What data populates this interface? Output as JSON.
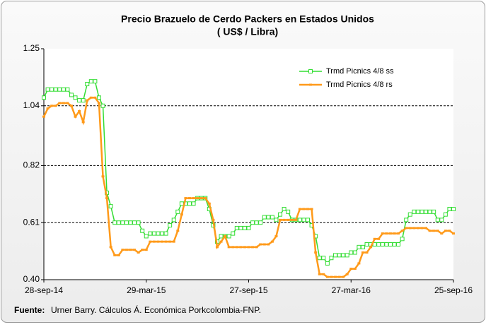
{
  "chart_data": {
    "type": "line",
    "title": "Precio Brazuelo de Cerdo Packers en Estados Unidos",
    "subtitle": "( US$ / Libra)",
    "source_label": "Fuente:",
    "source_text": "Urner Barry. Cálculos Á. Económica Porkcolombia-FNP.",
    "categories": [
      "28-sep-14",
      null,
      null,
      null,
      null,
      null,
      null,
      null,
      null,
      null,
      null,
      null,
      null,
      null,
      null,
      null,
      null,
      null,
      null,
      null,
      null,
      null,
      null,
      null,
      null,
      null,
      "29-mar-15",
      null,
      null,
      null,
      null,
      null,
      null,
      null,
      null,
      null,
      null,
      null,
      null,
      null,
      null,
      null,
      null,
      null,
      null,
      null,
      null,
      null,
      null,
      null,
      null,
      null,
      "27-sep-15",
      null,
      null,
      null,
      null,
      null,
      null,
      null,
      null,
      null,
      null,
      null,
      null,
      null,
      null,
      null,
      null,
      null,
      null,
      null,
      null,
      null,
      null,
      null,
      null,
      null,
      "27-mar-16",
      null,
      null,
      null,
      null,
      null,
      null,
      null,
      null,
      null,
      null,
      null,
      null,
      null,
      null,
      null,
      null,
      null,
      null,
      null,
      null,
      null,
      null,
      null,
      null,
      null,
      "25-sep-16"
    ],
    "series": [
      {
        "name": "Trmd Picnics 4/8 ss",
        "color": "#33dd33",
        "marker": "square",
        "values": [
          1.07,
          1.1,
          1.1,
          1.1,
          1.1,
          1.1,
          1.1,
          1.08,
          1.07,
          1.06,
          1.06,
          1.12,
          1.13,
          1.13,
          1.07,
          1.04,
          0.72,
          0.67,
          0.61,
          0.61,
          0.61,
          0.61,
          0.61,
          0.61,
          0.61,
          0.58,
          0.56,
          0.57,
          0.57,
          0.57,
          0.57,
          0.57,
          0.6,
          0.62,
          0.65,
          0.68,
          0.68,
          0.68,
          0.68,
          0.7,
          0.7,
          0.7,
          0.66,
          0.6,
          0.54,
          0.56,
          0.56,
          0.56,
          0.57,
          0.59,
          0.59,
          0.59,
          0.59,
          0.61,
          0.61,
          0.61,
          0.63,
          0.63,
          0.63,
          0.62,
          0.64,
          0.66,
          0.65,
          0.62,
          0.62,
          0.62,
          0.62,
          0.62,
          0.6,
          0.56,
          0.48,
          0.48,
          0.46,
          0.48,
          0.49,
          0.49,
          0.49,
          0.49,
          0.5,
          0.5,
          0.52,
          0.52,
          0.53,
          0.53,
          0.53,
          0.53,
          0.53,
          0.53,
          0.53,
          0.53,
          0.53,
          0.55,
          0.62,
          0.64,
          0.65,
          0.65,
          0.65,
          0.65,
          0.65,
          0.65,
          0.62,
          0.62,
          0.64,
          0.66,
          0.66
        ]
      },
      {
        "name": "Trmd Picnics 4/8 rs",
        "color": "#ff9a1a",
        "marker": "dash",
        "values": [
          1.0,
          1.03,
          1.04,
          1.04,
          1.05,
          1.05,
          1.05,
          1.04,
          1.0,
          1.02,
          0.98,
          1.06,
          1.07,
          1.07,
          1.05,
          0.78,
          0.7,
          0.52,
          0.49,
          0.49,
          0.51,
          0.51,
          0.51,
          0.51,
          0.5,
          0.51,
          0.51,
          0.54,
          0.54,
          0.54,
          0.54,
          0.54,
          0.54,
          0.54,
          0.58,
          0.64,
          0.7,
          0.7,
          0.7,
          0.7,
          0.7,
          0.7,
          0.68,
          0.62,
          0.52,
          0.54,
          0.56,
          0.52,
          0.52,
          0.52,
          0.52,
          0.52,
          0.52,
          0.52,
          0.52,
          0.53,
          0.53,
          0.53,
          0.54,
          0.56,
          0.62,
          0.62,
          0.62,
          0.62,
          0.62,
          0.66,
          0.66,
          0.66,
          0.66,
          0.5,
          0.42,
          0.42,
          0.41,
          0.41,
          0.41,
          0.41,
          0.41,
          0.42,
          0.44,
          0.44,
          0.46,
          0.5,
          0.5,
          0.52,
          0.55,
          0.55,
          0.57,
          0.57,
          0.57,
          0.57,
          0.57,
          0.58,
          0.59,
          0.59,
          0.59,
          0.59,
          0.59,
          0.59,
          0.58,
          0.58,
          0.58,
          0.57,
          0.58,
          0.58,
          0.57
        ]
      }
    ],
    "ylim": [
      0.4,
      1.25
    ],
    "yticks": [
      {
        "value": 0.4,
        "label": "0.40"
      },
      0.61,
      0.82,
      1.04,
      1.25
    ],
    "grid": true,
    "legend": "upper right"
  }
}
